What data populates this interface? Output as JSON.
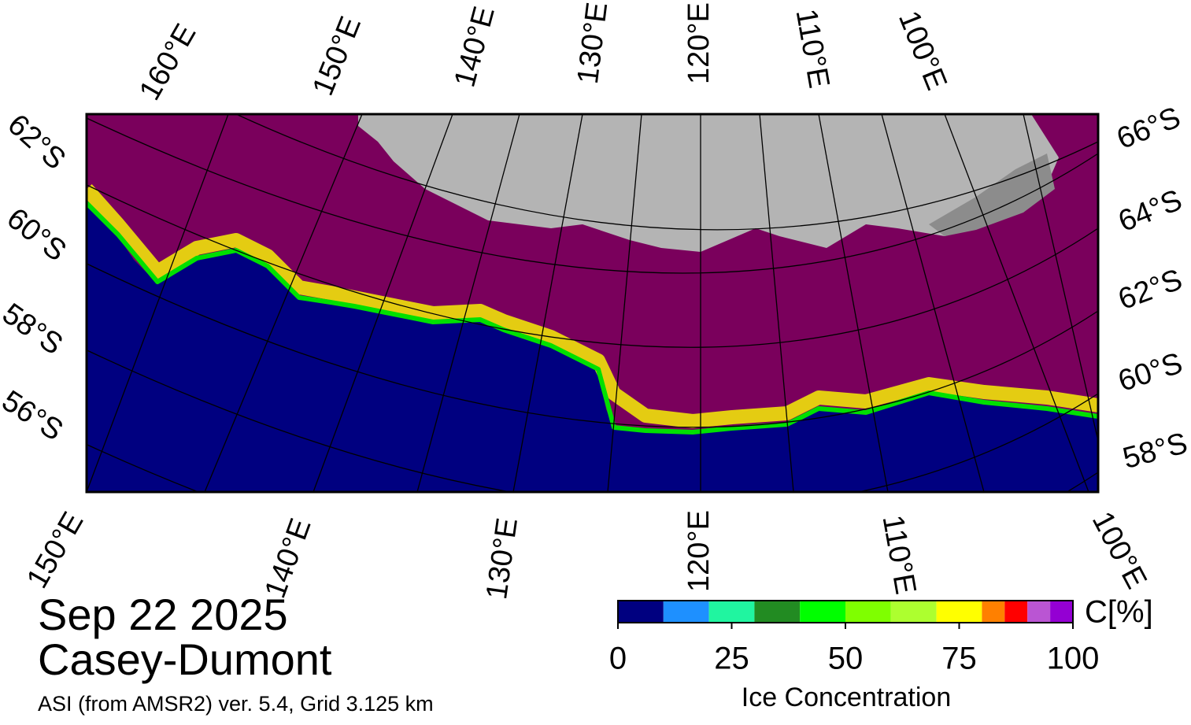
{
  "title": {
    "date": "Sep 22 2025",
    "region": "Casey-Dumont",
    "source": "ASI (from AMSR2) ver. 5.4,  Grid 3.125 km"
  },
  "map": {
    "top_labels": [
      "160°E",
      "150°E",
      "140°E",
      "130°E",
      "120°E",
      "110°E",
      "100°E"
    ],
    "right_labels": [
      "66°S",
      "64°S",
      "62°S",
      "60°S",
      "58°S"
    ],
    "left_labels": [
      "62°S",
      "60°S",
      "58°S",
      "56°S"
    ],
    "bottom_labels": [
      "150°E",
      "140°E",
      "130°E",
      "120°E",
      "110°E",
      "100°E"
    ]
  },
  "colorbar": {
    "label": "Ice Concentration",
    "unit": "C[%]",
    "range": [
      0,
      100
    ],
    "ticks": [
      0,
      25,
      50,
      75,
      100
    ],
    "bins": [
      0,
      10,
      20,
      30,
      40,
      50,
      60,
      70,
      80,
      85,
      90,
      95,
      100
    ],
    "colors": [
      "#000080",
      "#1e90ff",
      "#20f5a0",
      "#228b22",
      "#00ff00",
      "#7fff00",
      "#adff2f",
      "#ffff00",
      "#ff8000",
      "#ff0000",
      "#ba55d3",
      "#9400d3"
    ]
  }
}
